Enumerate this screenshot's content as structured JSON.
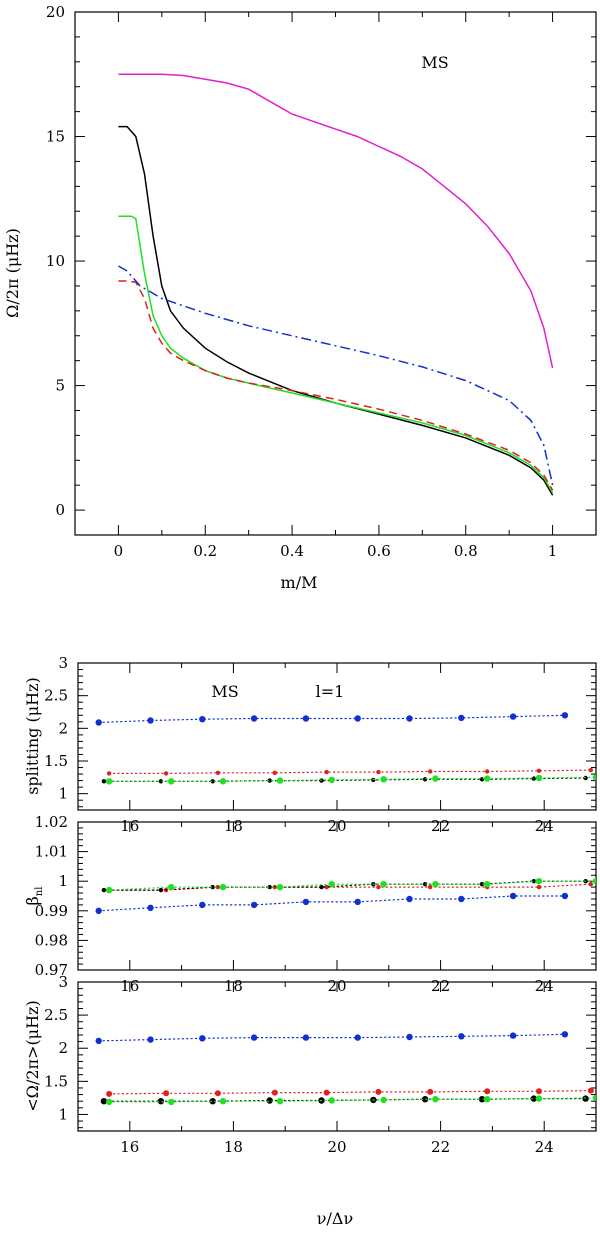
{
  "chart_data": [
    {
      "id": "top",
      "type": "line",
      "title": "",
      "annotation": "MS",
      "xlabel": "m/M",
      "ylabel": "Ω/2π (μHz)",
      "xlim": [
        -0.1,
        1.1
      ],
      "ylim": [
        -1,
        20
      ],
      "xticks": [
        0,
        0.2,
        0.4,
        0.6,
        0.8,
        1
      ],
      "xtick_labels": [
        "0",
        "0.2",
        "0.4",
        "0.6",
        "0.8",
        "1"
      ],
      "yticks": [
        0,
        5,
        10,
        15,
        20
      ],
      "ytick_labels": [
        "0",
        "5",
        "10",
        "15",
        "20"
      ],
      "series": [
        {
          "name": "magenta",
          "color": "#e020d0",
          "dash": "solid",
          "x": [
            0,
            0.05,
            0.1,
            0.15,
            0.2,
            0.25,
            0.3,
            0.35,
            0.4,
            0.45,
            0.5,
            0.55,
            0.6,
            0.65,
            0.7,
            0.75,
            0.8,
            0.85,
            0.9,
            0.95,
            0.98,
            1.0
          ],
          "y": [
            17.5,
            17.5,
            17.5,
            17.45,
            17.3,
            17.15,
            16.9,
            16.4,
            15.9,
            15.6,
            15.3,
            15.0,
            14.6,
            14.2,
            13.7,
            13.0,
            12.3,
            11.4,
            10.3,
            8.8,
            7.3,
            5.7
          ]
        },
        {
          "name": "black",
          "color": "#000000",
          "dash": "solid",
          "x": [
            0,
            0.02,
            0.04,
            0.06,
            0.08,
            0.1,
            0.12,
            0.15,
            0.2,
            0.25,
            0.3,
            0.35,
            0.4,
            0.5,
            0.6,
            0.7,
            0.8,
            0.9,
            0.95,
            0.98,
            1.0
          ],
          "y": [
            15.4,
            15.4,
            15.0,
            13.5,
            11.0,
            9.0,
            8.0,
            7.3,
            6.5,
            5.95,
            5.5,
            5.15,
            4.8,
            4.3,
            3.85,
            3.4,
            2.9,
            2.2,
            1.7,
            1.2,
            0.6
          ]
        },
        {
          "name": "green",
          "color": "#20e020",
          "dash": "solid",
          "x": [
            0,
            0.03,
            0.04,
            0.06,
            0.08,
            0.1,
            0.12,
            0.15,
            0.2,
            0.25,
            0.3,
            0.35,
            0.4,
            0.5,
            0.6,
            0.7,
            0.8,
            0.9,
            0.95,
            0.98,
            1.0
          ],
          "y": [
            11.8,
            11.8,
            11.7,
            9.5,
            7.8,
            7.0,
            6.5,
            6.1,
            5.6,
            5.3,
            5.1,
            4.9,
            4.7,
            4.3,
            3.9,
            3.5,
            3.0,
            2.3,
            1.8,
            1.3,
            0.7
          ]
        },
        {
          "name": "red",
          "color": "#e02020",
          "dash": "8,5",
          "x": [
            0,
            0.02,
            0.04,
            0.06,
            0.08,
            0.1,
            0.12,
            0.15,
            0.2,
            0.25,
            0.3,
            0.35,
            0.4,
            0.5,
            0.6,
            0.7,
            0.8,
            0.9,
            0.95,
            0.98,
            1.0
          ],
          "y": [
            9.2,
            9.2,
            9.15,
            8.5,
            7.3,
            6.7,
            6.3,
            6.0,
            5.6,
            5.3,
            5.1,
            4.95,
            4.8,
            4.45,
            4.05,
            3.6,
            3.05,
            2.4,
            1.9,
            1.4,
            0.8
          ]
        },
        {
          "name": "blue",
          "color": "#1030d0",
          "dash": "10,4,2,4",
          "x": [
            0,
            0.02,
            0.05,
            0.1,
            0.15,
            0.2,
            0.3,
            0.4,
            0.5,
            0.6,
            0.7,
            0.8,
            0.9,
            0.95,
            0.98,
            1.0
          ],
          "y": [
            9.8,
            9.6,
            9.0,
            8.5,
            8.2,
            7.9,
            7.4,
            7.0,
            6.6,
            6.2,
            5.75,
            5.2,
            4.4,
            3.6,
            2.6,
            1.0
          ]
        }
      ]
    },
    {
      "id": "p2",
      "type": "scatter",
      "title": "",
      "annotation": "MS",
      "annotation2": "l=1",
      "xlabel": "",
      "ylabel": "splitting (μHz)",
      "xlim": [
        15,
        25
      ],
      "ylim": [
        0.75,
        3
      ],
      "xticks": [
        16,
        18,
        20,
        22,
        24
      ],
      "xtick_labels": [
        "16",
        "18",
        "20",
        "22",
        "24"
      ],
      "yticks": [
        1,
        1.5,
        2,
        2.5,
        3
      ],
      "ytick_labels": [
        "1",
        "1.5",
        "2",
        "2.5",
        "3"
      ],
      "series": [
        {
          "name": "blue",
          "color": "#1030d0",
          "size": 3.2,
          "x": [
            15.4,
            16.4,
            17.4,
            18.4,
            19.4,
            20.4,
            21.4,
            22.4,
            23.4,
            24.4
          ],
          "y": [
            2.09,
            2.12,
            2.14,
            2.15,
            2.15,
            2.15,
            2.15,
            2.16,
            2.18,
            2.2
          ]
        },
        {
          "name": "red",
          "color": "#e02020",
          "size": 2.2,
          "x": [
            15.6,
            16.7,
            17.7,
            18.8,
            19.8,
            20.8,
            21.8,
            22.9,
            23.9,
            24.9
          ],
          "y": [
            1.31,
            1.31,
            1.32,
            1.32,
            1.33,
            1.33,
            1.34,
            1.34,
            1.35,
            1.36
          ]
        },
        {
          "name": "black",
          "color": "#000000",
          "size": 2.2,
          "x": [
            15.5,
            16.6,
            17.6,
            18.7,
            19.7,
            20.7,
            21.7,
            22.8,
            23.8,
            24.8
          ],
          "y": [
            1.19,
            1.19,
            1.19,
            1.2,
            1.2,
            1.21,
            1.22,
            1.22,
            1.23,
            1.24
          ]
        },
        {
          "name": "green",
          "color": "#20e020",
          "size": 3.2,
          "x": [
            15.6,
            16.8,
            17.8,
            18.9,
            19.9,
            20.9,
            21.9,
            22.9,
            23.9,
            25.0
          ],
          "y": [
            1.19,
            1.19,
            1.19,
            1.2,
            1.21,
            1.22,
            1.23,
            1.23,
            1.24,
            1.25
          ]
        }
      ]
    },
    {
      "id": "p3",
      "type": "scatter",
      "title": "",
      "xlabel": "",
      "ylabel": "β_nl",
      "ylabel_main": "β",
      "ylabel_sub": "nl",
      "xlim": [
        15,
        25
      ],
      "ylim": [
        0.97,
        1.02
      ],
      "xticks": [
        16,
        18,
        20,
        22,
        24
      ],
      "xtick_labels": [
        "16",
        "18",
        "20",
        "22",
        "24"
      ],
      "yticks": [
        0.97,
        0.98,
        0.99,
        1,
        1.01,
        1.02
      ],
      "ytick_labels": [
        "0.97",
        "0.98",
        "0.99",
        "1",
        "1.01",
        "1.02"
      ],
      "series": [
        {
          "name": "blue",
          "color": "#1030d0",
          "size": 3.2,
          "x": [
            15.4,
            16.4,
            17.4,
            18.4,
            19.4,
            20.4,
            21.4,
            22.4,
            23.4,
            24.4
          ],
          "y": [
            0.99,
            0.991,
            0.992,
            0.992,
            0.993,
            0.993,
            0.994,
            0.994,
            0.995,
            0.995
          ]
        },
        {
          "name": "red",
          "color": "#e02020",
          "size": 2.2,
          "x": [
            15.6,
            16.7,
            17.7,
            18.8,
            19.8,
            20.8,
            21.8,
            22.9,
            23.9,
            24.9
          ],
          "y": [
            0.997,
            0.997,
            0.998,
            0.998,
            0.998,
            0.998,
            0.998,
            0.998,
            0.998,
            0.999
          ]
        },
        {
          "name": "black",
          "color": "#000000",
          "size": 2.2,
          "x": [
            15.5,
            16.6,
            17.6,
            18.7,
            19.7,
            20.7,
            21.7,
            22.8,
            23.8,
            24.8
          ],
          "y": [
            0.997,
            0.997,
            0.998,
            0.998,
            0.998,
            0.999,
            0.999,
            0.999,
            1.0,
            1.0
          ]
        },
        {
          "name": "green",
          "color": "#20e020",
          "size": 3.2,
          "x": [
            15.6,
            16.8,
            17.8,
            18.9,
            19.9,
            20.9,
            21.9,
            22.9,
            23.9,
            25.0
          ],
          "y": [
            0.997,
            0.998,
            0.998,
            0.998,
            0.999,
            0.999,
            0.999,
            0.999,
            1.0,
            1.0
          ]
        }
      ]
    },
    {
      "id": "p4",
      "type": "scatter",
      "title": "",
      "xlabel": "ν/Δν",
      "ylabel": "<Ω/2π>(μHz)",
      "xlim": [
        15,
        25
      ],
      "ylim": [
        0.75,
        3
      ],
      "xticks": [
        16,
        18,
        20,
        22,
        24
      ],
      "xtick_labels": [
        "16",
        "18",
        "20",
        "22",
        "24"
      ],
      "yticks": [
        1,
        1.5,
        2,
        2.5,
        3
      ],
      "ytick_labels": [
        "1",
        "1.5",
        "2",
        "2.5",
        "3"
      ],
      "series": [
        {
          "name": "blue",
          "color": "#1030d0",
          "size": 3.2,
          "x": [
            15.4,
            16.4,
            17.4,
            18.4,
            19.4,
            20.4,
            21.4,
            22.4,
            23.4,
            24.4
          ],
          "y": [
            2.11,
            2.13,
            2.15,
            2.16,
            2.16,
            2.16,
            2.17,
            2.18,
            2.19,
            2.21
          ]
        },
        {
          "name": "red",
          "color": "#e02020",
          "size": 3.0,
          "x": [
            15.6,
            16.7,
            17.7,
            18.8,
            19.8,
            20.8,
            21.8,
            22.9,
            23.9,
            24.9
          ],
          "y": [
            1.31,
            1.32,
            1.32,
            1.33,
            1.33,
            1.34,
            1.34,
            1.35,
            1.35,
            1.36
          ]
        },
        {
          "name": "black",
          "color": "#000000",
          "size": 3.2,
          "x": [
            15.5,
            16.6,
            17.6,
            18.7,
            19.7,
            20.7,
            21.7,
            22.8,
            23.8,
            24.8
          ],
          "y": [
            1.2,
            1.2,
            1.2,
            1.21,
            1.21,
            1.22,
            1.23,
            1.23,
            1.24,
            1.24
          ]
        },
        {
          "name": "green",
          "color": "#20e020",
          "size": 3.2,
          "x": [
            15.6,
            16.8,
            17.8,
            18.9,
            19.9,
            20.9,
            21.9,
            22.9,
            23.9,
            25.0
          ],
          "y": [
            1.19,
            1.19,
            1.2,
            1.2,
            1.21,
            1.22,
            1.23,
            1.23,
            1.24,
            1.25
          ]
        }
      ]
    }
  ]
}
